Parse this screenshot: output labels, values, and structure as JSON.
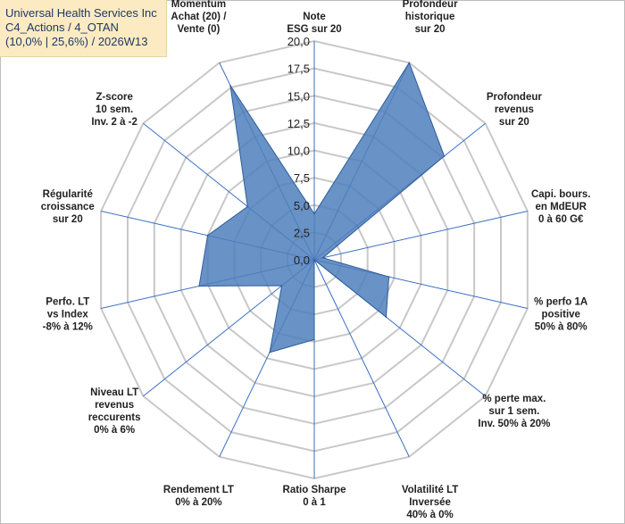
{
  "header": {
    "line1": "Universal Health Services Inc",
    "line2": "C4_Actions / 4_OTAN",
    "line3": "(10,0% | 25,6%) / 2026W13"
  },
  "colors": {
    "fill": "#4f7fbc",
    "stroke": "#2e5d9a",
    "grid": "#c8c8c8",
    "spoke": "#3a6fc4"
  },
  "chart_data": {
    "type": "radar",
    "rlim": [
      0,
      20
    ],
    "rticks": [
      "0,0",
      "2,5",
      "5,0",
      "7,5",
      "10,0",
      "12,5",
      "15,0",
      "17,5",
      "20,0"
    ],
    "axes": [
      {
        "label": [
          "Note",
          "ESG sur 20"
        ],
        "value": 4.2
      },
      {
        "label": [
          "Profondeur",
          "historique",
          "sur 20"
        ],
        "value": 20.0
      },
      {
        "label": [
          "Profondeur",
          "revenus",
          "sur 20"
        ],
        "value": 15.2
      },
      {
        "label": [
          "Capi. bours.",
          "en MdEUR",
          "0 à 60 G€"
        ],
        "value": 0.8
      },
      {
        "label": [
          "% perfo 1A",
          "positive",
          "50% à 80%"
        ],
        "value": 7.0
      },
      {
        "label": [
          "% perte max.",
          "sur 1 sem.",
          "Inv. 50% à 20%"
        ],
        "value": 8.4
      },
      {
        "label": [
          "Volatilité LT",
          "Inversée",
          "40% à 0%"
        ],
        "value": 0.0
      },
      {
        "label": [
          "Ratio Sharpe",
          "0 à 1"
        ],
        "value": 7.3
      },
      {
        "label": [
          "Rendement LT",
          "0% à 20%"
        ],
        "value": 9.4
      },
      {
        "label": [
          "Niveau LT",
          "revenus",
          "reccurents",
          "0% à 6%"
        ],
        "value": 3.8
      },
      {
        "label": [
          "Perfo. LT",
          "vs Index",
          "-8% à 12%"
        ],
        "value": 10.8
      },
      {
        "label": [
          "Régularité",
          "croissance",
          "sur 20"
        ],
        "value": 10.0
      },
      {
        "label": [
          "Z-score",
          "10 sem.",
          "Inv. 2 à -2"
        ],
        "value": 7.8
      },
      {
        "label": [
          "Momentum",
          "Achat (20) /",
          "Vente (0)"
        ],
        "value": 17.7
      }
    ]
  }
}
